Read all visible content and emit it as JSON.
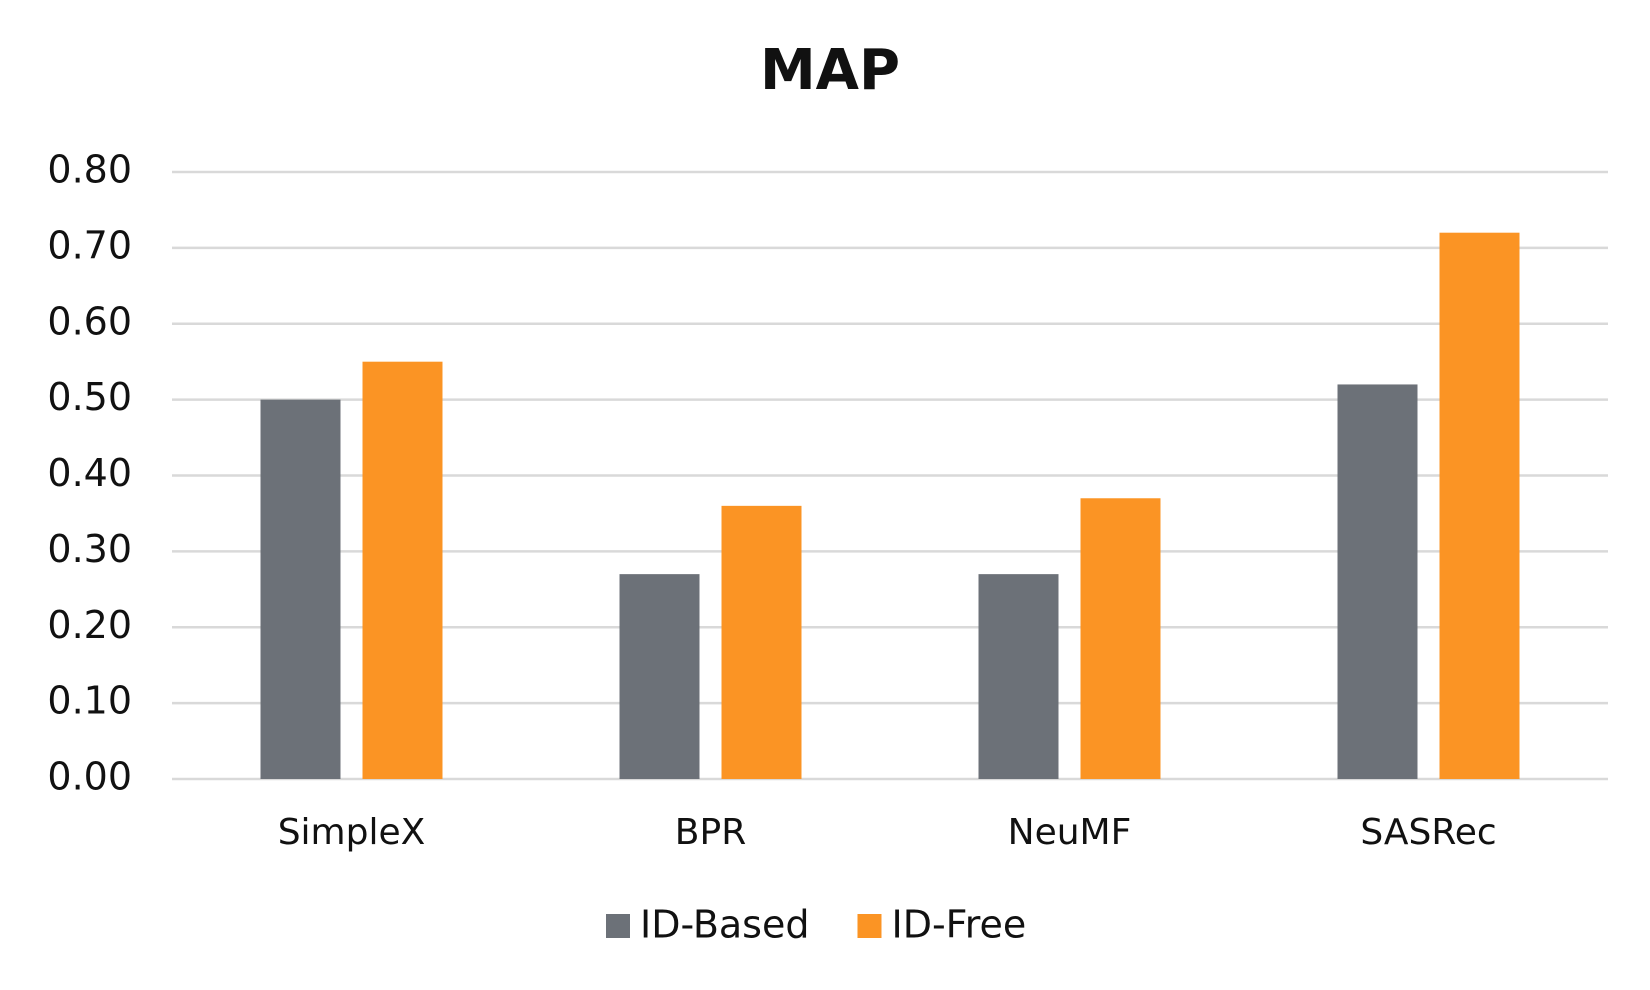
{
  "chart_data": {
    "type": "bar",
    "title": "MAP",
    "categories": [
      "SimpleX",
      "BPR",
      "NeuMF",
      "SASRec"
    ],
    "series": [
      {
        "name": "ID-Based",
        "color": "#6c7178",
        "values": [
          0.5,
          0.27,
          0.27,
          0.52
        ]
      },
      {
        "name": "ID-Free",
        "color": "#fb9424",
        "values": [
          0.55,
          0.36,
          0.37,
          0.72
        ]
      }
    ],
    "ylim": [
      0,
      0.8
    ],
    "yticks": [
      {
        "value": 0,
        "label": "0.00"
      },
      {
        "value": 0.1,
        "label": "0.10"
      },
      {
        "value": 0.2,
        "label": "0.20"
      },
      {
        "value": 0.3,
        "label": "0.30"
      },
      {
        "value": 0.4,
        "label": "0.40"
      },
      {
        "value": 0.5,
        "label": "0.50"
      },
      {
        "value": 0.6,
        "label": "0.60"
      },
      {
        "value": 0.7,
        "label": "0.70"
      },
      {
        "value": 0.8,
        "label": "0.80"
      }
    ],
    "grid": true,
    "legend": "bottom"
  }
}
